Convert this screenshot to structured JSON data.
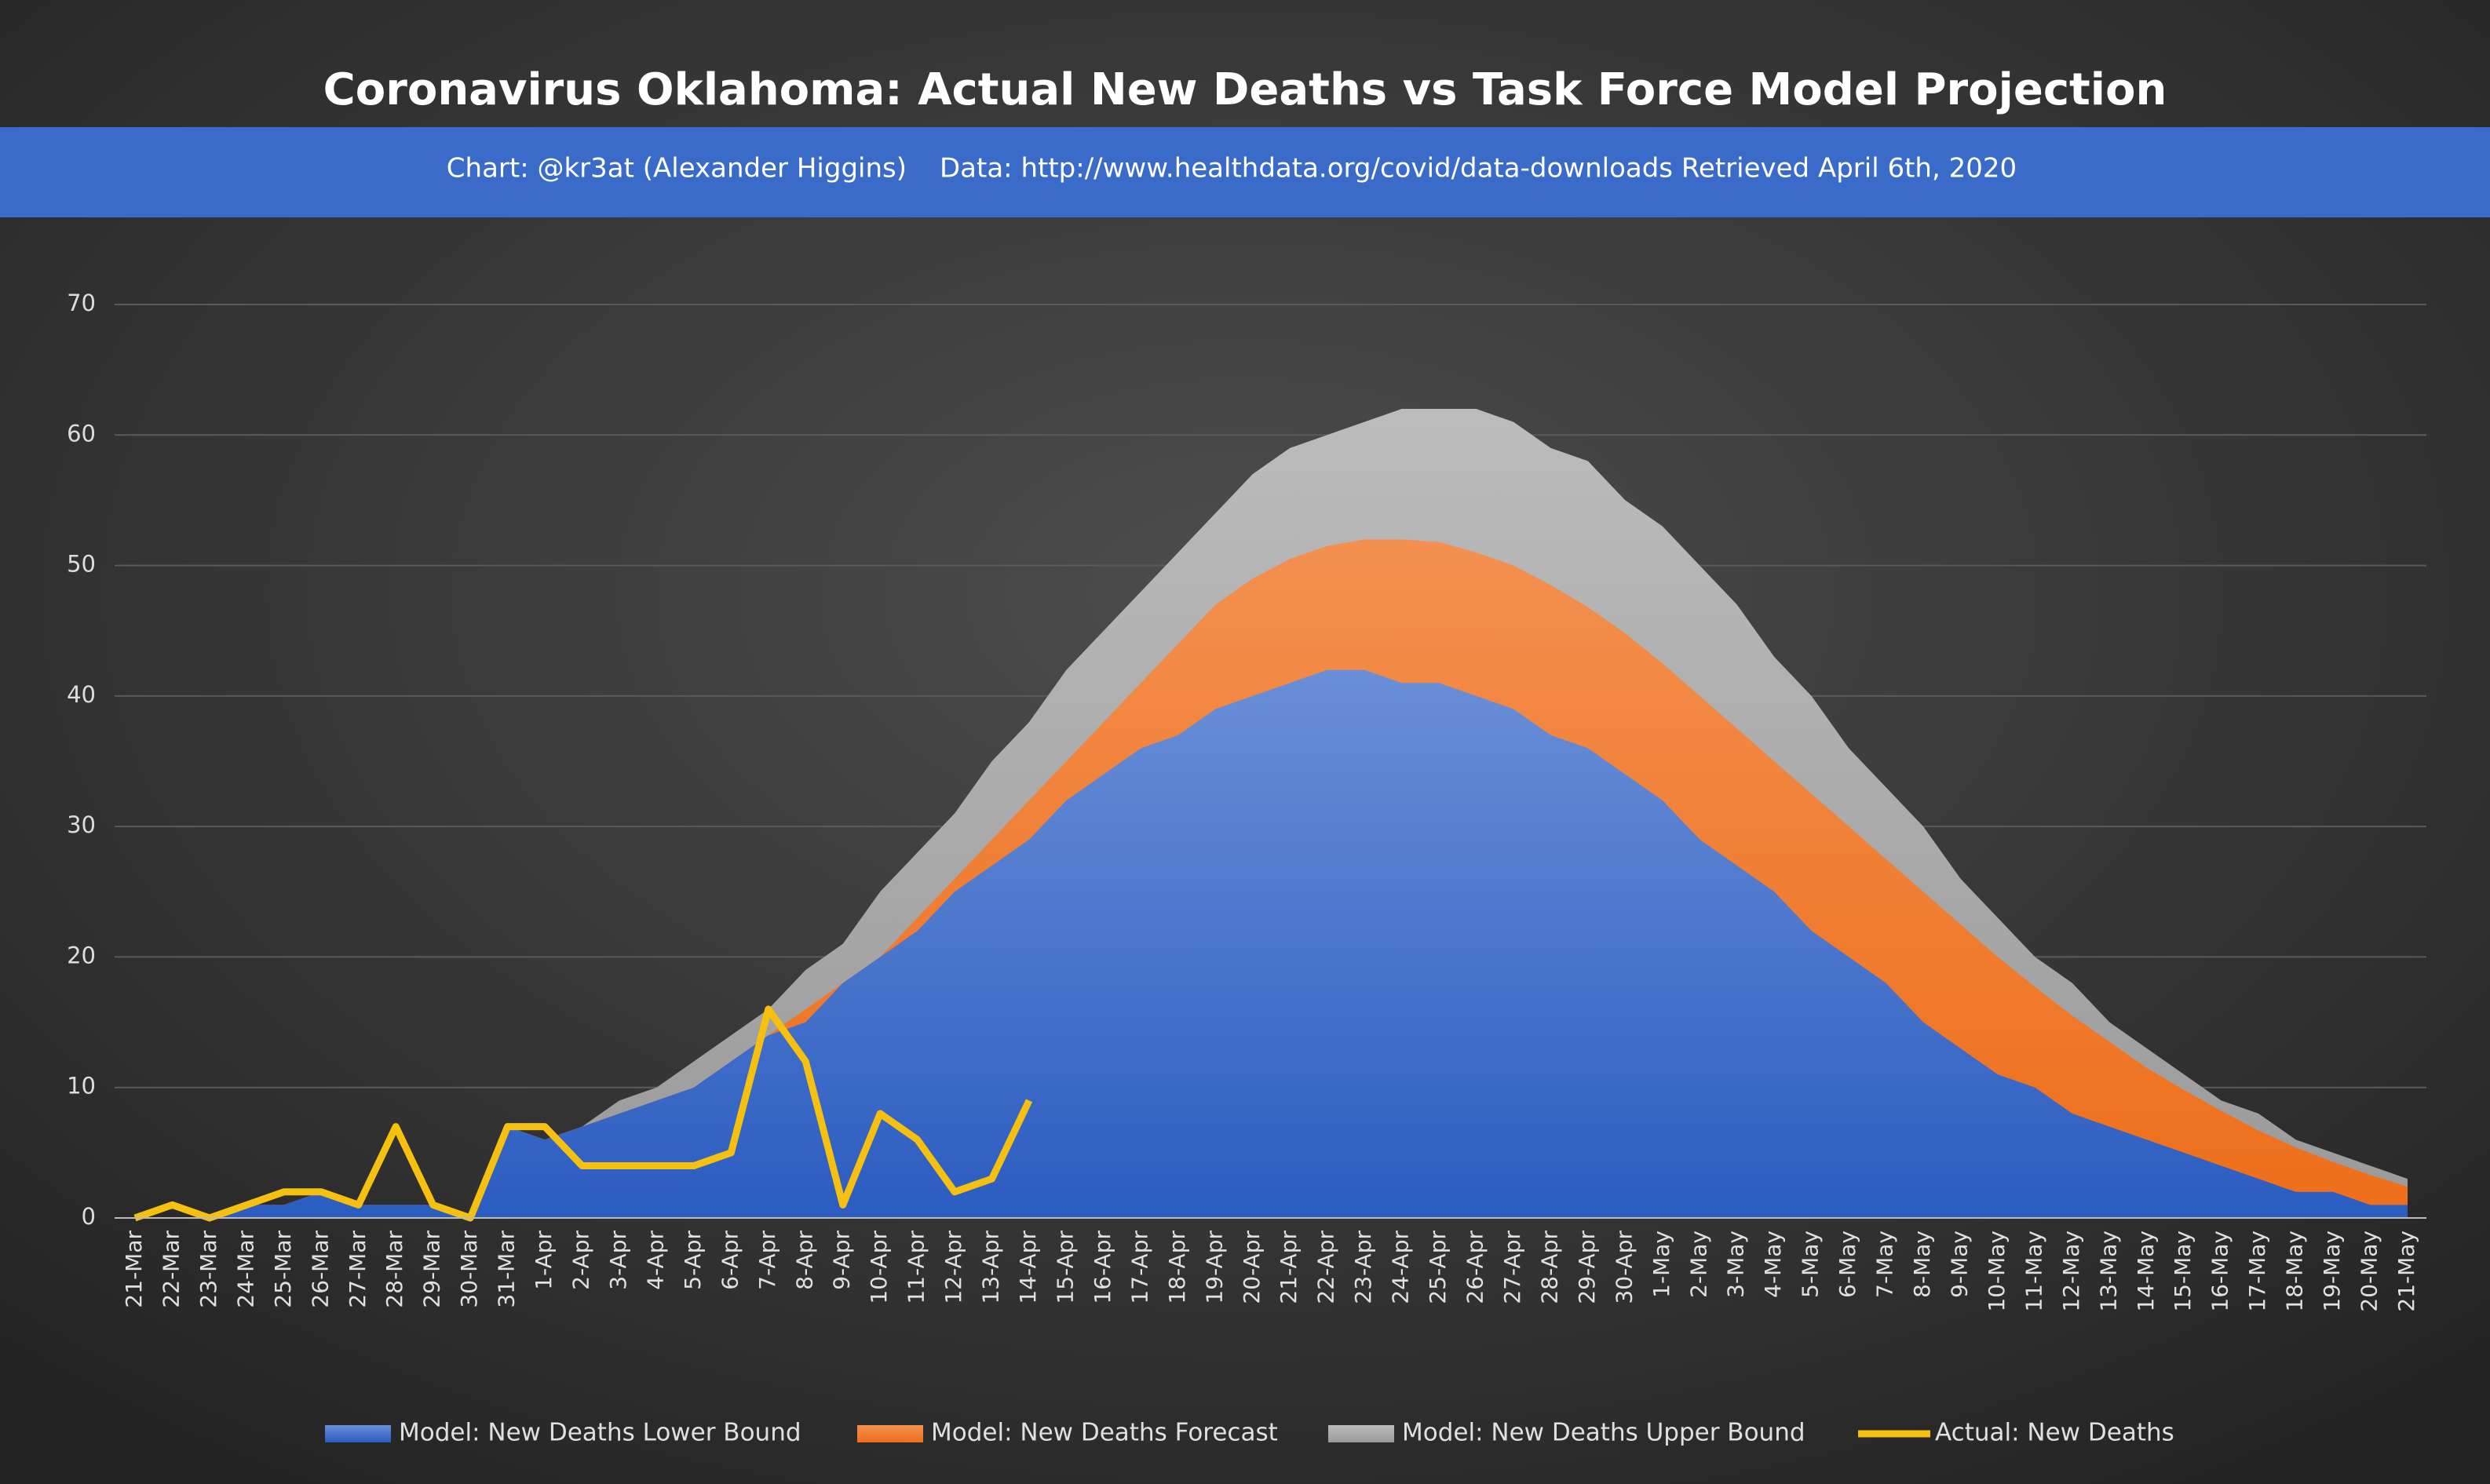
{
  "chart_data": {
    "type": "area-line",
    "title": "Coronavirus Oklahoma: Actual New Deaths vs Task Force Model Projection",
    "subtitle": [
      "Chart: @kr3at (Alexander Higgins)",
      "Data: http://www.healthdata.org/covid/data-downloads Retrieved April 6th, 2020"
    ],
    "categories": [
      "21-Mar",
      "22-Mar",
      "23-Mar",
      "24-Mar",
      "25-Mar",
      "26-Mar",
      "27-Mar",
      "28-Mar",
      "29-Mar",
      "30-Mar",
      "31-Mar",
      "1-Apr",
      "2-Apr",
      "3-Apr",
      "4-Apr",
      "5-Apr",
      "6-Apr",
      "7-Apr",
      "8-Apr",
      "9-Apr",
      "10-Apr",
      "11-Apr",
      "12-Apr",
      "13-Apr",
      "14-Apr",
      "15-Apr",
      "16-Apr",
      "17-Apr",
      "18-Apr",
      "19-Apr",
      "20-Apr",
      "21-Apr",
      "22-Apr",
      "23-Apr",
      "24-Apr",
      "25-Apr",
      "26-Apr",
      "27-Apr",
      "28-Apr",
      "29-Apr",
      "30-Apr",
      "1-May",
      "2-May",
      "3-May",
      "4-May",
      "5-May",
      "6-May",
      "7-May",
      "8-May",
      "9-May",
      "10-May",
      "11-May",
      "12-May",
      "13-May",
      "14-May",
      "15-May",
      "16-May",
      "17-May",
      "18-May",
      "19-May",
      "20-May",
      "21-May"
    ],
    "series": [
      {
        "name": "Model: New Deaths Lower Bound",
        "kind": "area",
        "color": "#3d6bd0",
        "values": [
          0,
          0,
          0,
          1,
          1,
          2,
          1,
          1,
          1,
          0,
          7,
          6,
          7,
          8,
          9,
          10,
          12,
          14,
          15,
          18,
          20,
          22,
          25,
          27,
          29,
          32,
          34,
          36,
          37,
          39,
          40,
          41,
          42,
          42,
          41,
          41,
          40,
          39,
          37,
          36,
          34,
          32,
          29,
          27,
          25,
          22,
          20,
          18,
          15,
          13,
          11,
          10,
          8,
          7,
          6,
          5,
          4,
          3,
          2,
          2,
          1,
          1
        ]
      },
      {
        "name": "Model: New Deaths Forecast",
        "kind": "area",
        "color": "#f07a30",
        "values": [
          0,
          0,
          0,
          1,
          1,
          2,
          1,
          1,
          1,
          0,
          7,
          6,
          7,
          8,
          9,
          10,
          12,
          14,
          16,
          18,
          20,
          23,
          26,
          29,
          32,
          35,
          38,
          41,
          44,
          47,
          49,
          50.5,
          51.5,
          52,
          52,
          51.8,
          51,
          50,
          48.5,
          46.8,
          44.8,
          42.5,
          40,
          37.5,
          35,
          32.5,
          30,
          27.5,
          25,
          22.5,
          20,
          17.7,
          15.5,
          13.5,
          11.5,
          9.8,
          8.2,
          6.7,
          5.4,
          4.3,
          3.3,
          2.4
        ]
      },
      {
        "name": "Model: New Deaths Upper Bound",
        "kind": "area",
        "color": "#aaaaaa",
        "values": [
          0,
          0,
          0,
          1,
          1,
          2,
          1,
          1,
          1,
          0,
          7,
          6,
          7,
          9,
          10,
          12,
          14,
          16,
          19,
          21,
          25,
          28,
          31,
          35,
          38,
          42,
          45,
          48,
          51,
          54,
          57,
          59,
          60,
          61,
          62,
          62,
          62,
          61,
          59,
          58,
          55,
          53,
          50,
          47,
          43,
          40,
          36,
          33,
          30,
          26,
          23,
          20,
          18,
          15,
          13,
          11,
          9,
          8,
          6,
          5,
          4,
          3
        ]
      },
      {
        "name": "Actual: New Deaths",
        "kind": "line",
        "color": "#f5c010",
        "values": [
          0,
          1,
          0,
          1,
          2,
          2,
          1,
          7,
          1,
          0,
          7,
          7,
          4,
          4,
          4,
          4,
          5,
          16,
          12,
          1,
          8,
          6,
          2,
          3,
          9,
          null,
          null,
          null,
          null,
          null,
          null,
          null,
          null,
          null,
          null,
          null,
          null,
          null,
          null,
          null,
          null,
          null,
          null,
          null,
          null,
          null,
          null,
          null,
          null,
          null,
          null,
          null,
          null,
          null,
          null,
          null,
          null,
          null,
          null,
          null,
          null,
          null
        ]
      }
    ],
    "ylim": [
      0,
      70
    ],
    "yticks": [
      0,
      10,
      20,
      30,
      40,
      50,
      60,
      70
    ],
    "grid": true,
    "legend": "bottom"
  }
}
